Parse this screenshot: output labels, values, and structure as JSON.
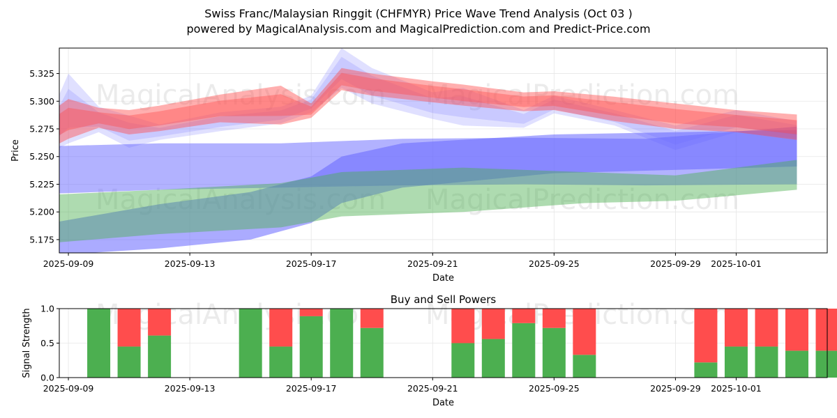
{
  "title_line1": "Swiss Franc/Malaysian Ringgit (CHFMYR) Price Wave Trend Analysis (Oct 03 )",
  "title_line2": "powered by MagicalAnalysis.com and MagicalPrediction.com and Predict-Price.com",
  "watermarks": [
    "MagicalAnalysis.com",
    "MagicalPrediction.com"
  ],
  "colors": {
    "blue_band": "#6666ff",
    "green_band": "#4caf50",
    "red_band": "#ff4d4d",
    "buy": "#4caf50",
    "sell": "#ff4d4d"
  },
  "chart_data": [
    {
      "type": "area",
      "name": "price-wave",
      "xlabel": "Date",
      "ylabel": "Price",
      "ylim": [
        5.163,
        5.348
      ],
      "yticks": [
        5.175,
        5.2,
        5.225,
        5.25,
        5.275,
        5.3,
        5.325
      ],
      "xlim": [
        "2025-09-07.7",
        "2025-10-04.0"
      ],
      "xticks": [
        "2025-09-09",
        "2025-09-13",
        "2025-09-17",
        "2025-09-21",
        "2025-09-25",
        "2025-09-29",
        "2025-10-01"
      ],
      "grid": true,
      "bands": [
        {
          "name": "blue-wide-band",
          "color": "#6666ff",
          "opacity": 0.5,
          "x": [
            "2025-09-08",
            "2025-09-12",
            "2025-09-16",
            "2025-09-20",
            "2025-09-24",
            "2025-09-28",
            "2025-10-03"
          ],
          "upper": [
            5.259,
            5.262,
            5.262,
            5.266,
            5.267,
            5.266,
            5.277
          ],
          "lower": [
            5.216,
            5.22,
            5.222,
            5.224,
            5.225,
            5.224,
            5.225
          ]
        },
        {
          "name": "blue-rising-band",
          "color": "#6666ff",
          "opacity": 0.55,
          "x": [
            "2025-09-08",
            "2025-09-12",
            "2025-09-15",
            "2025-09-17",
            "2025-09-18",
            "2025-09-20",
            "2025-09-25",
            "2025-10-03"
          ],
          "upper": [
            5.188,
            5.207,
            5.218,
            5.232,
            5.25,
            5.262,
            5.27,
            5.274
          ],
          "lower": [
            5.16,
            5.167,
            5.175,
            5.19,
            5.208,
            5.222,
            5.235,
            5.241
          ]
        },
        {
          "name": "green-band",
          "color": "#4caf50",
          "opacity": 0.45,
          "x": [
            "2025-09-08",
            "2025-09-12",
            "2025-09-16",
            "2025-09-18",
            "2025-09-22",
            "2025-09-26",
            "2025-09-29",
            "2025-10-03"
          ],
          "upper": [
            5.215,
            5.22,
            5.226,
            5.236,
            5.24,
            5.236,
            5.233,
            5.247
          ],
          "lower": [
            5.171,
            5.18,
            5.186,
            5.196,
            5.2,
            5.208,
            5.21,
            5.22
          ]
        },
        {
          "name": "blue-wave-band",
          "color": "#6666ff",
          "opacity": 0.2,
          "x": [
            "2025-09-08",
            "2025-09-09",
            "2025-09-10",
            "2025-09-11",
            "2025-09-12",
            "2025-09-14",
            "2025-09-16",
            "2025-09-17",
            "2025-09-18",
            "2025-09-19",
            "2025-09-21",
            "2025-09-22",
            "2025-09-24",
            "2025-09-25",
            "2025-09-27",
            "2025-09-29",
            "2025-10-01",
            "2025-10-03"
          ],
          "upper": [
            5.262,
            5.325,
            5.295,
            5.287,
            5.279,
            5.29,
            5.295,
            5.305,
            5.348,
            5.33,
            5.308,
            5.312,
            5.292,
            5.305,
            5.292,
            5.278,
            5.292,
            5.282
          ],
          "lower": [
            5.248,
            5.262,
            5.272,
            5.258,
            5.265,
            5.273,
            5.28,
            5.29,
            5.312,
            5.298,
            5.284,
            5.278,
            5.276,
            5.289,
            5.278,
            5.256,
            5.272,
            5.266
          ]
        },
        {
          "name": "red-wave-band",
          "color": "#ff4d4d",
          "opacity": 0.45,
          "x": [
            "2025-09-08",
            "2025-09-09",
            "2025-09-10",
            "2025-09-11",
            "2025-09-12",
            "2025-09-14",
            "2025-09-16",
            "2025-09-17",
            "2025-09-18",
            "2025-09-19",
            "2025-09-21",
            "2025-09-22",
            "2025-09-24",
            "2025-09-25",
            "2025-09-27",
            "2025-09-29",
            "2025-10-01",
            "2025-10-03"
          ],
          "upper": [
            5.282,
            5.302,
            5.294,
            5.292,
            5.296,
            5.306,
            5.314,
            5.298,
            5.33,
            5.325,
            5.318,
            5.315,
            5.308,
            5.309,
            5.304,
            5.298,
            5.292,
            5.288
          ],
          "lower": [
            5.252,
            5.266,
            5.276,
            5.27,
            5.273,
            5.281,
            5.279,
            5.285,
            5.31,
            5.305,
            5.299,
            5.296,
            5.291,
            5.292,
            5.282,
            5.275,
            5.272,
            5.265
          ]
        }
      ]
    },
    {
      "type": "bar",
      "name": "buy-sell-powers",
      "title": "Buy and Sell Powers",
      "xlabel": "Date",
      "ylabel": "Signal Strength",
      "ylim": [
        0.0,
        1.0
      ],
      "yticks": [
        "0.0",
        "0.5",
        "1.0"
      ],
      "xticks": [
        "2025-09-09",
        "2025-09-13",
        "2025-09-17",
        "2025-09-21",
        "2025-09-25",
        "2025-09-29",
        "2025-10-01"
      ],
      "categories": [
        "2025-09-10",
        "2025-09-11",
        "2025-09-12",
        "2025-09-15",
        "2025-09-16",
        "2025-09-17",
        "2025-09-18",
        "2025-09-19",
        "2025-09-22",
        "2025-09-23",
        "2025-09-24",
        "2025-09-25",
        "2025-09-26",
        "2025-09-30",
        "2025-10-01",
        "2025-10-02",
        "2025-10-03",
        "2025-10-04"
      ],
      "series": [
        {
          "name": "Buy",
          "color": "#4caf50",
          "values": [
            1.0,
            0.45,
            0.61,
            1.0,
            0.45,
            0.89,
            1.0,
            0.72,
            0.5,
            0.56,
            0.79,
            0.72,
            0.33,
            0.22,
            0.45,
            0.45,
            0.39,
            0.39
          ]
        },
        {
          "name": "Sell",
          "color": "#ff4d4d",
          "values": [
            0.0,
            0.55,
            0.39,
            0.0,
            0.55,
            0.11,
            0.0,
            0.28,
            0.5,
            0.44,
            0.21,
            0.28,
            0.67,
            0.78,
            0.55,
            0.55,
            0.61,
            0.61
          ]
        }
      ]
    }
  ]
}
